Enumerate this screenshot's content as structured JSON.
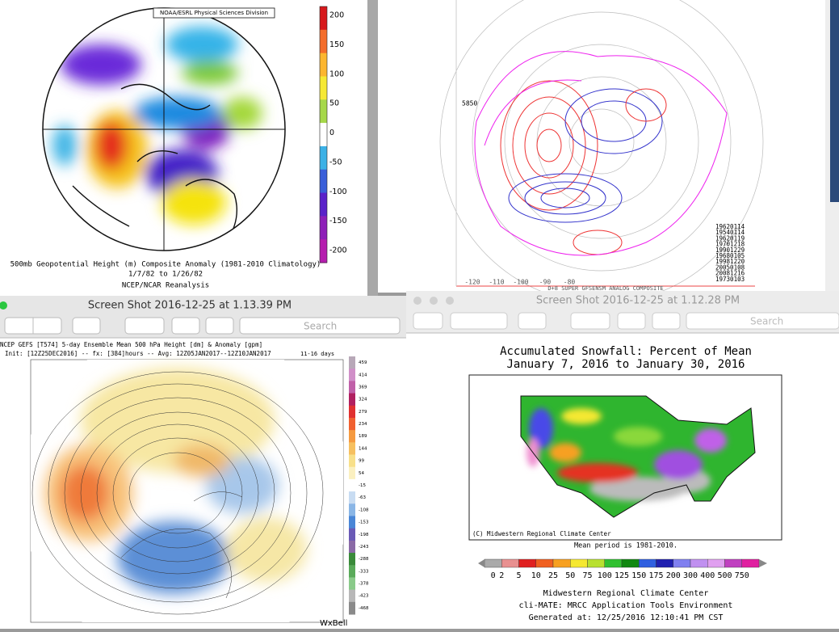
{
  "top_left": {
    "org": "NOAA/ESRL Physical Sciences Division",
    "colorbar": [
      200,
      150,
      100,
      50,
      0,
      -50,
      -100,
      -150,
      -200
    ],
    "caption": [
      "500mb Geopotential Height (m) Composite Anomaly (1981-2010 Climatology)",
      "1/7/82 to 1/26/82",
      "NCEP/NCAR Reanalysis"
    ]
  },
  "top_right": {
    "contour_label": "5850",
    "dates": [
      "19620114",
      "19540114",
      "19620119",
      "19701218",
      "19901229",
      "19680105",
      "19981220",
      "20050108",
      "20081216",
      "19730103"
    ],
    "lon_labels": [
      "-120",
      "-110",
      "-100",
      "-90",
      "-80"
    ],
    "footer": "D+8 SUPER GFSENSM ANALOG COMPOSITE"
  },
  "window_gefs": {
    "title": "Screen Shot 2016-12-25 at 1.13.39 PM",
    "search": "Search",
    "header": [
      "NCEP GEFS [T574] 5-day Ensemble Mean 500 hPa Height [dm] & Anomaly [gpm]",
      "Init: [12Z25DEC2016] -- fx: [384]hours -- Avg: 12Z05JAN2017--12Z10JAN2017"
    ],
    "range": "11-16 days",
    "colorbar": [
      459,
      414,
      369,
      324,
      279,
      234,
      189,
      144,
      99,
      54,
      -15,
      -63,
      -108,
      -153,
      -198,
      -243,
      -288,
      -333,
      -378,
      -423,
      -468
    ],
    "brand": "WxBell"
  },
  "window_snow": {
    "title": "Screen Shot 2016-12-25 at 1.12.28 PM",
    "search": "Search",
    "chart_title": [
      "Accumulated Snowfall: Percent of Mean",
      "January 7, 2016 to January 30, 2016"
    ],
    "credit": "(C) Midwestern Regional Climate Center",
    "mean_period": "Mean period is 1981-2010.",
    "legend": [
      0,
      2,
      5,
      10,
      25,
      50,
      75,
      100,
      125,
      150,
      175,
      200,
      300,
      400,
      500,
      750
    ],
    "footer": [
      "Midwestern Regional Climate Center",
      "cli-MATE: MRCC Application Tools Environment",
      "Generated at: 12/25/2016 12:10:41 PM CST"
    ]
  }
}
